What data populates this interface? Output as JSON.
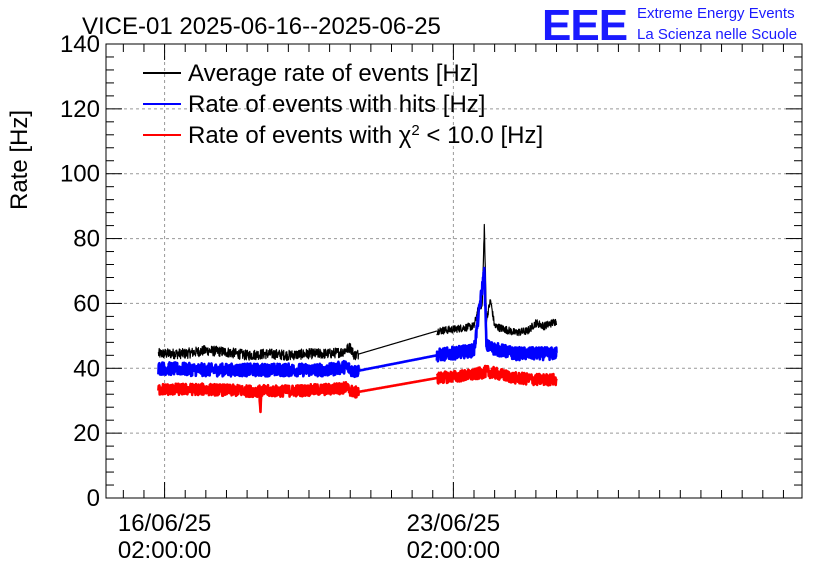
{
  "colors": {
    "average": "#000000",
    "hits": "#0000ff",
    "chi2": "#ff0000",
    "logo": "#1a1aff",
    "grid": "#999999"
  },
  "logo": {
    "mark": "EEE",
    "line1": "Extreme Energy Events",
    "line2": "La Scienza nelle Scuole"
  },
  "chart_data": {
    "type": "line",
    "title": "VICE-01 2025-06-16--2025-06-25",
    "ylabel": "Rate [Hz]",
    "xlabel": "",
    "ylim": [
      0,
      140
    ],
    "yticks": [
      0,
      20,
      40,
      60,
      80,
      100,
      120,
      140
    ],
    "x_unit": "days since 16/06/25 02:00:00",
    "xlim": [
      -1.42,
      15.45
    ],
    "xticks": [
      {
        "value": 0,
        "date": "16/06/25",
        "time": "02:00:00"
      },
      {
        "value": 7,
        "date": "23/06/25",
        "time": "02:00:00"
      }
    ],
    "grid": true,
    "legend_position": "top-left",
    "series": [
      {
        "name": "Average rate of events [Hz]",
        "legend_main": "Average rate of events [Hz]",
        "color": "#000000",
        "segments": [
          {
            "x_start": -0.15,
            "x_end": 6.6,
            "noise": 1.6,
            "points": [
              [
                -0.15,
                44.5
              ],
              [
                0.5,
                44.5
              ],
              [
                1.0,
                45.5
              ],
              [
                1.5,
                45
              ],
              [
                2.0,
                44
              ],
              [
                2.5,
                44.5
              ],
              [
                3.0,
                44
              ],
              [
                3.5,
                44.5
              ],
              [
                4.0,
                44.5
              ],
              [
                4.3,
                45
              ],
              [
                4.5,
                46.5
              ],
              [
                4.6,
                44
              ],
              [
                6.6,
                51.5
              ]
            ]
          },
          {
            "x_start": 6.6,
            "x_end": 9.5,
            "noise": 1.2,
            "points": [
              [
                6.6,
                51.5
              ],
              [
                7.0,
                52
              ],
              [
                7.5,
                53
              ],
              [
                7.6,
                58
              ],
              [
                7.7,
                60
              ],
              [
                7.75,
                84
              ],
              [
                7.8,
                55
              ],
              [
                7.9,
                61
              ],
              [
                8.0,
                53
              ],
              [
                8.5,
                51
              ],
              [
                8.8,
                51.5
              ],
              [
                9.0,
                54
              ],
              [
                9.2,
                53
              ],
              [
                9.5,
                54.5
              ]
            ]
          }
        ]
      },
      {
        "name": "Rate of events with hits [Hz]",
        "legend_main": "Rate of events with hits [Hz]",
        "color": "#0000ff",
        "segments": [
          {
            "x_start": -0.15,
            "x_end": 6.6,
            "noise": 2.0,
            "width": 2.6,
            "points": [
              [
                -0.15,
                40
              ],
              [
                1.0,
                39.5
              ],
              [
                2.0,
                39.5
              ],
              [
                3.0,
                39.5
              ],
              [
                4.0,
                39.5
              ],
              [
                4.4,
                40.5
              ],
              [
                4.6,
                39
              ],
              [
                6.6,
                44
              ]
            ]
          },
          {
            "x_start": 6.6,
            "x_end": 9.5,
            "noise": 2.0,
            "width": 2.6,
            "points": [
              [
                6.6,
                44
              ],
              [
                7.5,
                45.5
              ],
              [
                7.75,
                70
              ],
              [
                7.8,
                47
              ],
              [
                8.0,
                46
              ],
              [
                8.5,
                44.5
              ],
              [
                9.0,
                44.5
              ],
              [
                9.5,
                44.5
              ]
            ]
          }
        ]
      },
      {
        "name": "Rate of events with χ² < 10.0 [Hz]",
        "legend_main": "Rate of events with χ",
        "legend_sup": "2",
        "legend_tail": " < 10.0 [Hz]",
        "color": "#ff0000",
        "segments": [
          {
            "x_start": -0.15,
            "x_end": 6.6,
            "noise": 1.8,
            "width": 2.6,
            "points": [
              [
                -0.15,
                33.5
              ],
              [
                1.0,
                33.5
              ],
              [
                2.0,
                33
              ],
              [
                2.3,
                33
              ],
              [
                2.32,
                26
              ],
              [
                2.34,
                33
              ],
              [
                3.0,
                33
              ],
              [
                4.0,
                33.5
              ],
              [
                4.4,
                34
              ],
              [
                4.6,
                32.5
              ],
              [
                6.6,
                37
              ]
            ]
          },
          {
            "x_start": 6.6,
            "x_end": 9.5,
            "noise": 1.8,
            "width": 2.6,
            "points": [
              [
                6.6,
                37
              ],
              [
                7.5,
                38
              ],
              [
                7.8,
                39
              ],
              [
                8.0,
                38.5
              ],
              [
                8.5,
                37
              ],
              [
                9.0,
                36.5
              ],
              [
                9.5,
                36.5
              ]
            ]
          }
        ]
      }
    ]
  }
}
